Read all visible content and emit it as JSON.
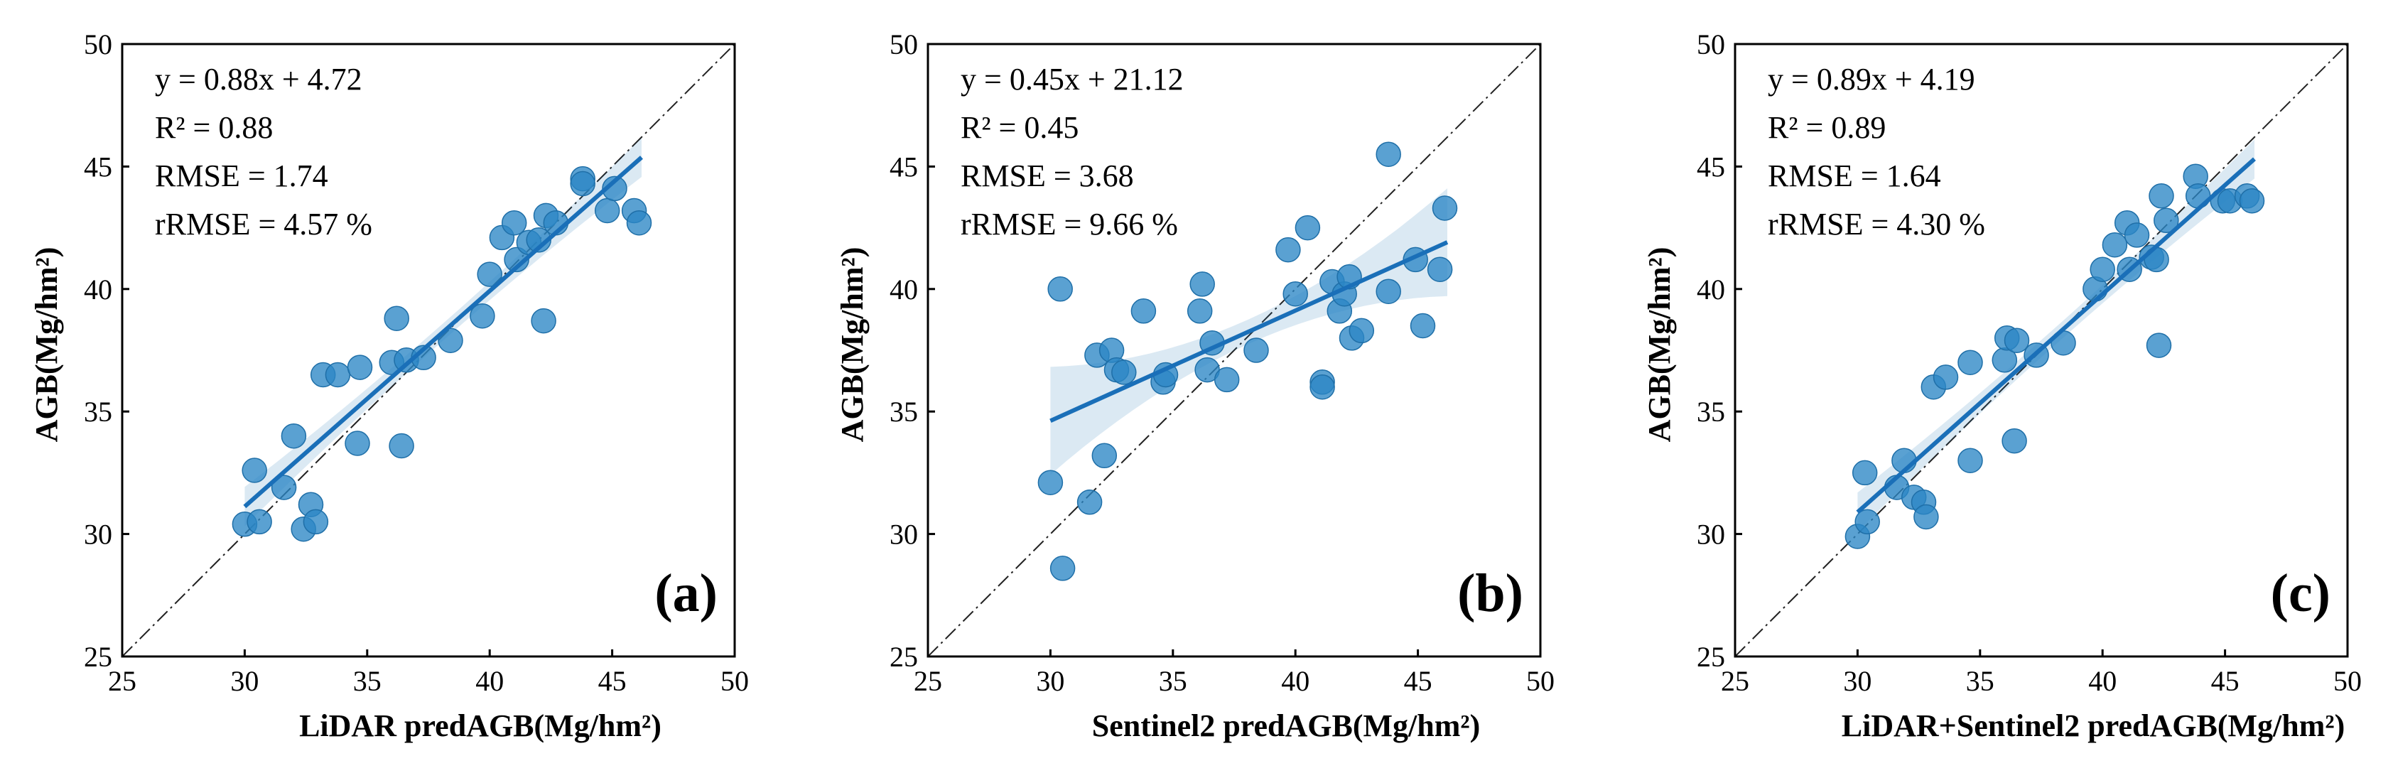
{
  "chart_data": [
    {
      "type": "scatter",
      "panel_label": "(a)",
      "xlabel": "LiDAR predAGB(Mg/hm²)",
      "ylabel": "AGB(Mg/hm²)",
      "xlim": [
        25,
        50
      ],
      "ylim": [
        25,
        50
      ],
      "xticks": [
        "25",
        "30",
        "35",
        "40",
        "45",
        "50"
      ],
      "yticks": [
        "25",
        "30",
        "35",
        "40",
        "45",
        "50"
      ],
      "equation": "y = 0.88x + 4.72",
      "r2": "R² = 0.88",
      "rmse": "RMSE = 1.74",
      "rrmse": "rRMSE = 4.57 %",
      "fit": {
        "slope": 0.88,
        "intercept": 4.72,
        "x_range": [
          30.0,
          46.2
        ],
        "ci_inner": 0.35,
        "ci_outer": 0.8
      },
      "points": [
        [
          30.0,
          30.4
        ],
        [
          30.6,
          30.5
        ],
        [
          30.4,
          32.6
        ],
        [
          31.6,
          31.9
        ],
        [
          32.0,
          34.0
        ],
        [
          32.4,
          30.2
        ],
        [
          32.7,
          31.2
        ],
        [
          32.9,
          30.5
        ],
        [
          33.2,
          36.5
        ],
        [
          33.8,
          36.5
        ],
        [
          34.6,
          33.7
        ],
        [
          34.7,
          36.8
        ],
        [
          36.0,
          37.0
        ],
        [
          36.2,
          38.8
        ],
        [
          36.4,
          33.6
        ],
        [
          36.6,
          37.1
        ],
        [
          37.3,
          37.2
        ],
        [
          38.4,
          37.9
        ],
        [
          39.7,
          38.9
        ],
        [
          40.0,
          40.6
        ],
        [
          40.5,
          42.1
        ],
        [
          41.0,
          42.7
        ],
        [
          41.1,
          41.2
        ],
        [
          41.6,
          41.9
        ],
        [
          42.0,
          42.0
        ],
        [
          42.2,
          38.7
        ],
        [
          42.3,
          43.0
        ],
        [
          42.7,
          42.7
        ],
        [
          43.8,
          44.5
        ],
        [
          43.8,
          44.3
        ],
        [
          44.8,
          43.2
        ],
        [
          45.1,
          44.1
        ],
        [
          45.9,
          43.2
        ],
        [
          46.1,
          42.7
        ]
      ]
    },
    {
      "type": "scatter",
      "panel_label": "(b)",
      "xlabel": "Sentinel2 predAGB(Mg/hm²)",
      "ylabel": "AGB(Mg/hm²)",
      "xlim": [
        25,
        50
      ],
      "ylim": [
        25,
        50
      ],
      "xticks": [
        "25",
        "30",
        "35",
        "40",
        "45",
        "50"
      ],
      "yticks": [
        "25",
        "30",
        "35",
        "40",
        "45",
        "50"
      ],
      "equation": "y = 0.45x + 21.12",
      "r2": "R² = 0.45",
      "rmse": "RMSE = 3.68",
      "rrmse": "rRMSE = 9.66 %",
      "fit": {
        "slope": 0.45,
        "intercept": 21.12,
        "x_range": [
          30.0,
          46.2
        ],
        "ci_inner": 0.5,
        "ci_outer": 2.2
      },
      "points": [
        [
          30.0,
          32.1
        ],
        [
          30.4,
          40.0
        ],
        [
          30.5,
          28.6
        ],
        [
          31.6,
          31.3
        ],
        [
          31.9,
          37.3
        ],
        [
          32.2,
          33.2
        ],
        [
          32.5,
          37.5
        ],
        [
          32.7,
          36.7
        ],
        [
          33.0,
          36.6
        ],
        [
          33.8,
          39.1
        ],
        [
          34.6,
          36.2
        ],
        [
          34.7,
          36.5
        ],
        [
          36.1,
          39.1
        ],
        [
          36.2,
          40.2
        ],
        [
          36.4,
          36.7
        ],
        [
          36.6,
          37.8
        ],
        [
          37.2,
          36.3
        ],
        [
          38.4,
          37.5
        ],
        [
          39.7,
          41.6
        ],
        [
          40.0,
          39.8
        ],
        [
          40.5,
          42.5
        ],
        [
          41.1,
          36.2
        ],
        [
          41.1,
          36.0
        ],
        [
          41.5,
          40.3
        ],
        [
          41.8,
          39.1
        ],
        [
          42.0,
          39.8
        ],
        [
          42.2,
          40.5
        ],
        [
          42.3,
          38.0
        ],
        [
          42.7,
          38.3
        ],
        [
          43.8,
          45.5
        ],
        [
          43.8,
          39.9
        ],
        [
          44.9,
          41.2
        ],
        [
          45.2,
          38.5
        ],
        [
          45.9,
          40.8
        ],
        [
          46.1,
          43.3
        ]
      ]
    },
    {
      "type": "scatter",
      "panel_label": "(c)",
      "xlabel": "LiDAR+Sentinel2 predAGB(Mg/hm²)",
      "ylabel": "AGB(Mg/hm²)",
      "xlim": [
        25,
        50
      ],
      "ylim": [
        25,
        50
      ],
      "xticks": [
        "25",
        "30",
        "35",
        "40",
        "45",
        "50"
      ],
      "yticks": [
        "25",
        "30",
        "35",
        "40",
        "45",
        "50"
      ],
      "equation": "y = 0.89x + 4.19",
      "r2": "R² = 0.89",
      "rmse": "RMSE = 1.64",
      "rrmse": "rRMSE = 4.30 %",
      "fit": {
        "slope": 0.89,
        "intercept": 4.19,
        "x_range": [
          30.0,
          46.2
        ],
        "ci_inner": 0.35,
        "ci_outer": 0.8
      },
      "points": [
        [
          30.0,
          29.9
        ],
        [
          30.4,
          30.5
        ],
        [
          30.3,
          32.5
        ],
        [
          31.6,
          31.9
        ],
        [
          31.9,
          33.0
        ],
        [
          32.3,
          31.5
        ],
        [
          32.7,
          31.3
        ],
        [
          32.8,
          30.7
        ],
        [
          33.1,
          36.0
        ],
        [
          33.6,
          36.4
        ],
        [
          34.6,
          33.0
        ],
        [
          34.6,
          37.0
        ],
        [
          36.0,
          37.1
        ],
        [
          36.1,
          38.0
        ],
        [
          36.4,
          33.8
        ],
        [
          36.5,
          37.9
        ],
        [
          37.3,
          37.3
        ],
        [
          38.4,
          37.8
        ],
        [
          39.7,
          40.0
        ],
        [
          40.0,
          40.8
        ],
        [
          40.5,
          41.8
        ],
        [
          41.0,
          42.7
        ],
        [
          41.1,
          40.8
        ],
        [
          41.4,
          42.2
        ],
        [
          42.0,
          41.3
        ],
        [
          42.2,
          41.2
        ],
        [
          42.3,
          37.7
        ],
        [
          42.4,
          43.8
        ],
        [
          42.6,
          42.8
        ],
        [
          43.8,
          44.6
        ],
        [
          43.9,
          43.8
        ],
        [
          44.9,
          43.6
        ],
        [
          45.2,
          43.6
        ],
        [
          45.9,
          43.8
        ],
        [
          46.1,
          43.6
        ]
      ]
    }
  ]
}
